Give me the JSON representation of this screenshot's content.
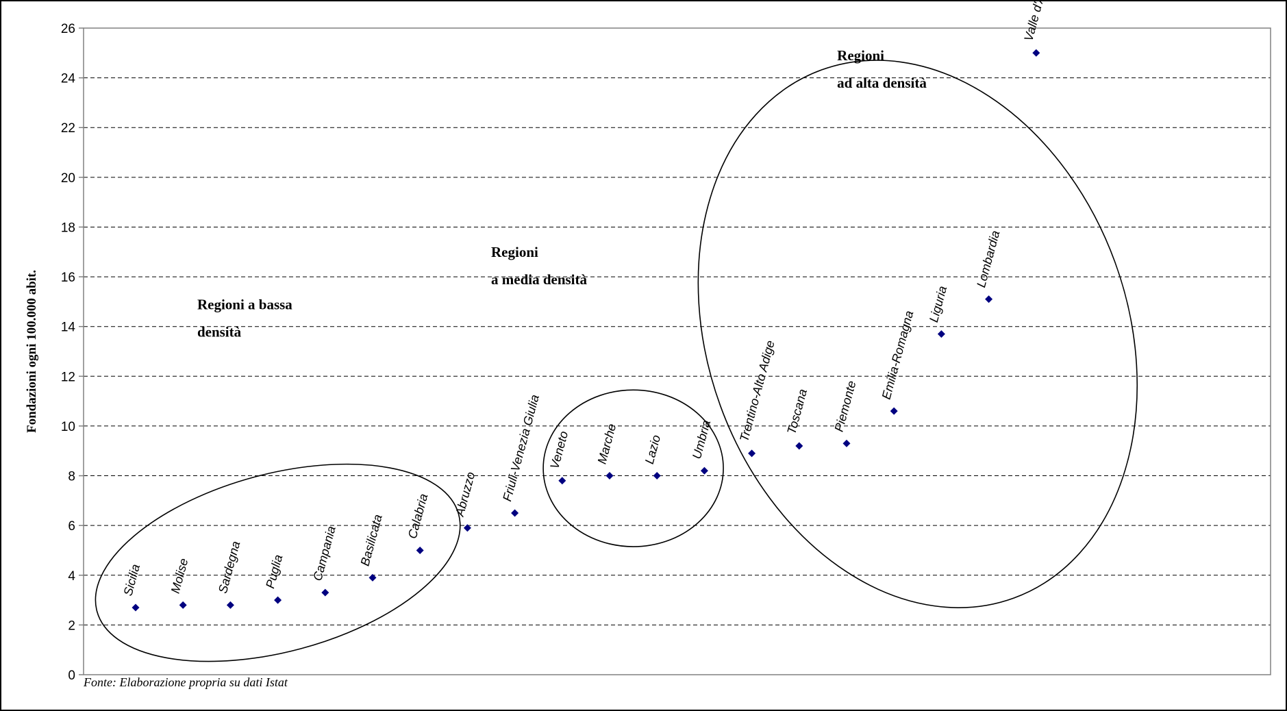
{
  "chart_data": {
    "type": "scatter",
    "title": "",
    "xlabel": "",
    "ylabel": "Fondazioni ogni 100.000 abit.",
    "ylim": [
      0,
      26
    ],
    "yticks": [
      0,
      2,
      4,
      6,
      8,
      10,
      12,
      14,
      16,
      18,
      20,
      22,
      24,
      26
    ],
    "grid": true,
    "marker_color": "#000080",
    "points": [
      {
        "label": "Sicilia",
        "y": 2.7
      },
      {
        "label": "Molise",
        "y": 2.8
      },
      {
        "label": "Sardegna",
        "y": 2.8
      },
      {
        "label": "Puglia",
        "y": 3.0
      },
      {
        "label": "Campania",
        "y": 3.3
      },
      {
        "label": "Basilicata",
        "y": 3.9
      },
      {
        "label": "Calabria",
        "y": 5.0
      },
      {
        "label": "Abruzzo",
        "y": 5.9
      },
      {
        "label": "Friuli-Venezia Giulia",
        "y": 6.5
      },
      {
        "label": "Veneto",
        "y": 7.8
      },
      {
        "label": "Marche",
        "y": 8.0
      },
      {
        "label": "Lazio",
        "y": 8.0
      },
      {
        "label": "Umbria",
        "y": 8.2
      },
      {
        "label": "Trentino-Alto Adige",
        "y": 8.9
      },
      {
        "label": "Toscana",
        "y": 9.2
      },
      {
        "label": "Piemonte",
        "y": 9.3
      },
      {
        "label": "Emilia-Romagna",
        "y": 10.6
      },
      {
        "label": "Liguria",
        "y": 13.7
      },
      {
        "label": "Lombardia",
        "y": 15.1
      },
      {
        "label": "Valle d'Aosta",
        "y": 25.0
      }
    ],
    "groups": [
      {
        "label_lines": [
          "Regioni a bassa",
          "densità"
        ]
      },
      {
        "label_lines": [
          "Regioni",
          "a media densità"
        ]
      },
      {
        "label_lines": [
          "Regioni",
          "ad alta densità"
        ]
      }
    ],
    "source_note": "Fonte: Elaborazione propria su dati Istat"
  }
}
